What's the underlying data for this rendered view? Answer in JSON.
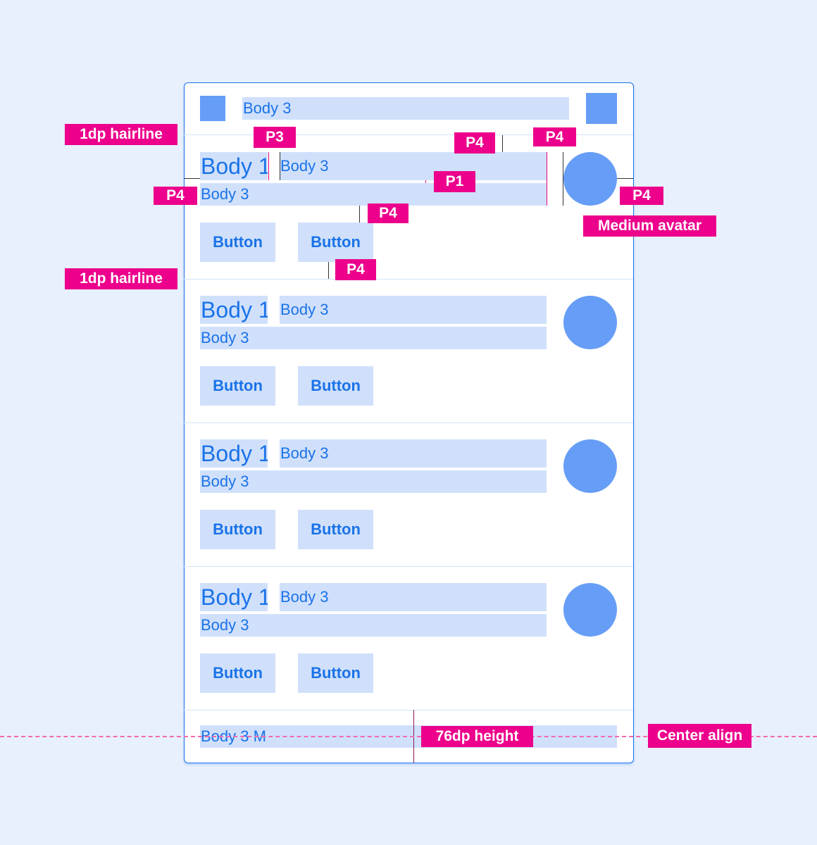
{
  "header": {
    "text": "Body 3"
  },
  "rows": [
    {
      "title": "Body 1",
      "meta": "Body 3",
      "subtitle": "Body 3",
      "buttons": [
        "Button",
        "Button"
      ]
    },
    {
      "title": "Body 1",
      "meta": "Body 3",
      "subtitle": "Body 3",
      "buttons": [
        "Button",
        "Button"
      ]
    },
    {
      "title": "Body 1",
      "meta": "Body 3",
      "subtitle": "Body 3",
      "buttons": [
        "Button",
        "Button"
      ]
    },
    {
      "title": "Body 1",
      "meta": "Body 3",
      "subtitle": "Body 3",
      "buttons": [
        "Button",
        "Button"
      ]
    }
  ],
  "footer": {
    "text": "Body 3 M"
  },
  "annotations": {
    "hairline_top": "1dp hairline",
    "hairline_mid": "1dp hairline",
    "p3": "P3",
    "p4_top": "P4",
    "p4_right_top": "P4",
    "p1": "P1",
    "p4_left": "P4",
    "p4_right": "P4",
    "p4_mid": "P4",
    "avatar": "Medium avatar",
    "p4_bottom": "P4",
    "height": "76dp height",
    "center": "Center align"
  },
  "colors": {
    "accent": "#1a73e8",
    "fill": "#d0e0fb",
    "shape": "#669df6",
    "redline": "#ec008c",
    "background": "#e8f0fe"
  }
}
